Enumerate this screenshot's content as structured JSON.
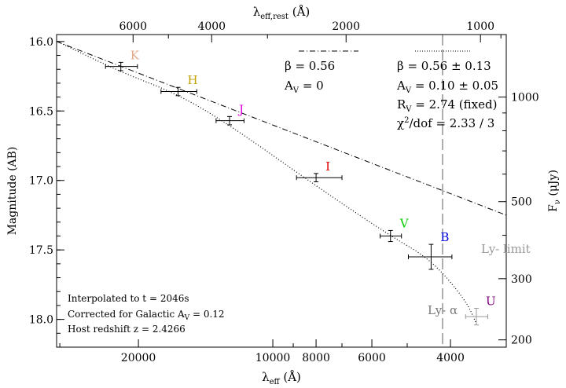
{
  "chart_data": {
    "type": "scatter",
    "title": "",
    "xlabel_main": "λ",
    "xlabel_sub": "eff",
    "xlabel_unit": " (Å)",
    "top_xlabel_main": "λ",
    "top_xlabel_sub": "eff,rest",
    "top_xlabel_unit": " (Å)",
    "ylabel": "Magnitude (AB)",
    "right_ylabel_main": "F",
    "right_ylabel_sub": "ν",
    "right_ylabel_unit": " (μJy)",
    "x_scale": "log (inverted)",
    "xlim": [
      30500,
      3000
    ],
    "ylim": [
      15.95,
      18.2
    ],
    "y_ticks": [
      {
        "value": 16.0,
        "label": "16.0"
      },
      {
        "value": 16.5,
        "label": "16.5"
      },
      {
        "value": 17.0,
        "label": "17.0"
      },
      {
        "value": 17.5,
        "label": "17.5"
      },
      {
        "value": 18.0,
        "label": "18.0"
      }
    ],
    "x_ticks": [
      {
        "value": 20000,
        "label": "20000"
      },
      {
        "value": 10000,
        "label": "10000"
      },
      {
        "value": 8000,
        "label": "8000"
      },
      {
        "value": 6000,
        "label": "6000"
      },
      {
        "value": 4000,
        "label": "4000"
      }
    ],
    "top_x_ticks": [
      {
        "value": 6000,
        "label": "6000"
      },
      {
        "value": 4000,
        "label": "4000"
      },
      {
        "value": 2000,
        "label": "2000"
      },
      {
        "value": 1000,
        "label": "1000"
      }
    ],
    "redshift_factor": 3.4266,
    "right_y_ticks": [
      {
        "value": 1000,
        "label": "1000"
      },
      {
        "value": 500,
        "label": "500"
      },
      {
        "value": 300,
        "label": "300"
      },
      {
        "value": 200,
        "label": "200"
      }
    ],
    "points": [
      {
        "band": "K",
        "wavelength": 21900,
        "wl_err": [
          1800,
          1800
        ],
        "mag": 16.18,
        "mag_err": 0.03,
        "label_color": "#e0a888",
        "grey": false
      },
      {
        "band": "H",
        "wavelength": 16300,
        "wl_err": [
          1500,
          1500
        ],
        "mag": 16.36,
        "mag_err": 0.03,
        "label_color": "#c0a000",
        "grey": false
      },
      {
        "band": "J",
        "wavelength": 12500,
        "wl_err": [
          900,
          900
        ],
        "mag": 16.57,
        "mag_err": 0.03,
        "label_color": "#e000e0",
        "grey": false
      },
      {
        "band": "I",
        "wavelength": 8000,
        "wl_err": [
          850,
          1000
        ],
        "mag": 16.98,
        "mag_err": 0.03,
        "label_color": "#e00000",
        "grey": false
      },
      {
        "band": "V",
        "wavelength": 5450,
        "wl_err": [
          300,
          300
        ],
        "mag": 17.4,
        "mag_err": 0.04,
        "label_color": "#00cc00",
        "grey": false
      },
      {
        "band": "B",
        "wavelength": 4420,
        "wl_err": [
          550,
          450
        ],
        "mag": 17.55,
        "mag_err": 0.09,
        "label_color": "#0000e0",
        "grey": false
      },
      {
        "band": "U",
        "wavelength": 3500,
        "wl_err": [
          200,
          200
        ],
        "mag": 17.98,
        "mag_err": 0.06,
        "label_color": "#800080",
        "grey": true
      }
    ],
    "models": [
      {
        "style": "dash-dot",
        "beta": "0.56",
        "av": "0",
        "line_y": [
          16.0,
          17.25
        ]
      },
      {
        "style": "dotted",
        "beta": "0.56 ± 0.13",
        "av": "0.10 ± 0.05",
        "rv": "2.74 (fixed)",
        "chi2": "2.33 / 3"
      }
    ],
    "lya_wavelength": 4166
  },
  "legend": {
    "left": {
      "beta_label": "β",
      "beta_value": " =  0.56",
      "av_label": "A",
      "av_sub": "V",
      "av_value": " = 0"
    },
    "right": {
      "beta_label": "β",
      "beta_value": " =  0.56 ± 0.13",
      "av_label": "A",
      "av_sub": "V",
      "av_value": " = 0.10 ± 0.05",
      "rv_label": "R",
      "rv_sub": "V",
      "rv_value": " = 2.74 (fixed)",
      "chi_label": "χ",
      "chi_value": "/dof = 2.33 / 3"
    }
  },
  "notes": {
    "line1": "Interpolated to t = 2046s",
    "line2_prefix": "Corrected for Galactic A",
    "line2_sub": "V",
    "line2_suffix": " = 0.12",
    "line3": "Host redshift z = 2.4266"
  },
  "labels": {
    "ly_limit": "Ly- limit",
    "ly_alpha": "Ly- α"
  },
  "colors": {
    "axes": "#000000",
    "grey_label": "#999999",
    "ly_alpha_label": "#777777",
    "lya_line": "#777777"
  }
}
